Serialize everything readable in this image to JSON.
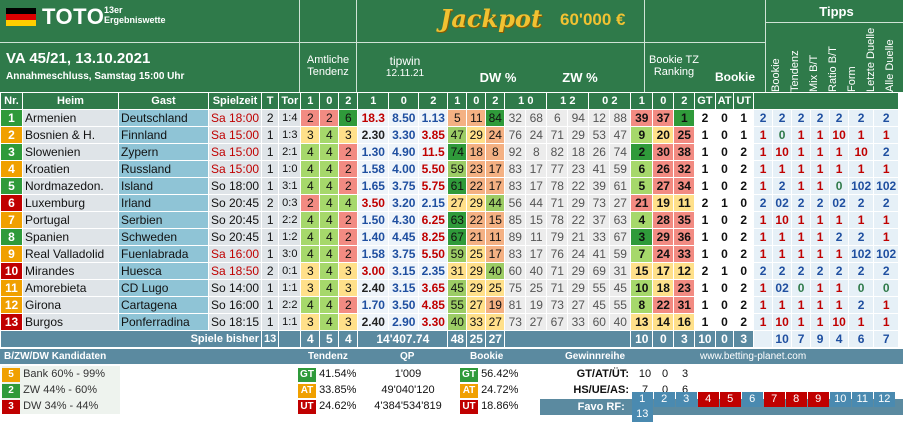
{
  "header": {
    "title": "TOTO",
    "subtitle_line1": "13er",
    "subtitle_line2": "Ergebniswette",
    "date": "VA 45/21, 13.10.2021",
    "deadline": "Annahmeschluss, Samstag 15:00 Uhr",
    "jackpot_label": "Jackpot",
    "jackpot_amount": "60'000 €",
    "amtliche1": "Amtliche",
    "amtliche2": "Tendenz",
    "tipwin": "tipwin",
    "tipwin_date": "12.11.21",
    "dw": "DW %",
    "zw": "ZW %",
    "bookie_tz1": "Bookie TZ",
    "bookie_tz2": "Ranking",
    "bookie": "Bookie",
    "tipps": "Tipps",
    "tipps_cols": [
      "Bookie",
      "Tendenz",
      "Mix B/T",
      "Ratio B/T",
      "Form",
      "Letzte Duelle",
      "Alle Duelle"
    ]
  },
  "columns": {
    "nr": "Nr.",
    "heim": "Heim",
    "gast": "Gast",
    "spielzeit": "Spielzeit",
    "t": "T",
    "tor": "Tor",
    "one": "1",
    "zero": "0",
    "two": "2",
    "z10": "1 0",
    "z12": "1 2",
    "z02": "0 2",
    "gt": "GT",
    "at": "AT",
    "ut": "UT"
  },
  "colors": {
    "green": "#2f7a4a",
    "red": "#c00000",
    "orange": "#f0a000",
    "blue": "#1f4fa0"
  },
  "rows": [
    {
      "nr": "1",
      "heim": "Armenien",
      "gast": "Deutschland",
      "zeit": "Sa 18:00",
      "t": "2",
      "tor": "1:4",
      "a1": "2",
      "a0": "2",
      "a2": "6",
      "q1": "18.3",
      "q0": "8.50",
      "q2": "1.13",
      "d1": "5",
      "d0": "11",
      "d2": "84",
      "z10": "32",
      "z10b": "68",
      "z12": "6",
      "z12b": "94",
      "z02": "12",
      "z02b": "88",
      "b1": "39",
      "b0": "37",
      "b2": "1",
      "gt": "2",
      "at": "0",
      "ut": "1",
      "tb": "2",
      "tt": "2",
      "tm": "2",
      "tr": "2",
      "tf": "2",
      "tl": "2",
      "ta": "2"
    },
    {
      "nr": "2",
      "heim": "Bosnien & H.",
      "gast": "Finnland",
      "zeit": "Sa 15:00",
      "t": "1",
      "tor": "1:3",
      "a1": "3",
      "a0": "4",
      "a2": "3",
      "q1": "2.30",
      "q0": "3.30",
      "q2": "3.85",
      "d1": "47",
      "d0": "29",
      "d2": "24",
      "z10": "76",
      "z10b": "24",
      "z12": "71",
      "z12b": "29",
      "z02": "53",
      "z02b": "47",
      "b1": "9",
      "b0": "20",
      "b2": "25",
      "gt": "1",
      "at": "0",
      "ut": "1",
      "tb": "1",
      "tt": "0",
      "tm": "1",
      "tr": "1",
      "tf": "10",
      "tl": "1",
      "ta": "1"
    },
    {
      "nr": "3",
      "heim": "Slowenien",
      "gast": "Zypern",
      "zeit": "Sa 15:00",
      "t": "1",
      "tor": "2:1",
      "a1": "4",
      "a0": "4",
      "a2": "2",
      "q1": "1.30",
      "q0": "4.90",
      "q2": "11.5",
      "d1": "74",
      "d0": "18",
      "d2": "8",
      "z10": "92",
      "z10b": "8",
      "z12": "82",
      "z12b": "18",
      "z02": "26",
      "z02b": "74",
      "b1": "2",
      "b0": "30",
      "b2": "38",
      "gt": "1",
      "at": "0",
      "ut": "2",
      "tb": "1",
      "tt": "10",
      "tm": "1",
      "tr": "1",
      "tf": "1",
      "tl": "10",
      "ta": "2"
    },
    {
      "nr": "4",
      "heim": "Kroatien",
      "gast": "Russland",
      "zeit": "Sa 15:00",
      "t": "1",
      "tor": "1:0",
      "a1": "4",
      "a0": "4",
      "a2": "2",
      "q1": "1.58",
      "q0": "4.00",
      "q2": "5.50",
      "d1": "59",
      "d0": "23",
      "d2": "17",
      "z10": "83",
      "z10b": "17",
      "z12": "77",
      "z12b": "23",
      "z02": "41",
      "z02b": "59",
      "b1": "6",
      "b0": "26",
      "b2": "32",
      "gt": "1",
      "at": "0",
      "ut": "2",
      "tb": "1",
      "tt": "1",
      "tm": "1",
      "tr": "1",
      "tf": "1",
      "tl": "1",
      "ta": "1"
    },
    {
      "nr": "5",
      "heim": "Nordmazedon.",
      "gast": "Island",
      "zeit": "So 18:00",
      "t": "1",
      "tor": "3:1",
      "a1": "4",
      "a0": "4",
      "a2": "2",
      "q1": "1.65",
      "q0": "3.75",
      "q2": "5.75",
      "d1": "61",
      "d0": "22",
      "d2": "17",
      "z10": "83",
      "z10b": "17",
      "z12": "78",
      "z12b": "22",
      "z02": "39",
      "z02b": "61",
      "b1": "5",
      "b0": "27",
      "b2": "34",
      "gt": "1",
      "at": "0",
      "ut": "2",
      "tb": "1",
      "tt": "2",
      "tm": "1",
      "tr": "1",
      "tf": "0",
      "tl": "102",
      "ta": "102"
    },
    {
      "nr": "6",
      "heim": "Luxemburg",
      "gast": "Irland",
      "zeit": "So 20:45",
      "t": "2",
      "tor": "0:3",
      "a1": "2",
      "a0": "4",
      "a2": "4",
      "q1": "3.50",
      "q0": "3.20",
      "q2": "2.15",
      "d1": "27",
      "d0": "29",
      "d2": "44",
      "z10": "56",
      "z10b": "44",
      "z12": "71",
      "z12b": "29",
      "z02": "73",
      "z02b": "27",
      "b1": "21",
      "b0": "19",
      "b2": "11",
      "gt": "2",
      "at": "1",
      "ut": "0",
      "tb": "2",
      "tt": "02",
      "tm": "2",
      "tr": "2",
      "tf": "02",
      "tl": "2",
      "ta": "2"
    },
    {
      "nr": "7",
      "heim": "Portugal",
      "gast": "Serbien",
      "zeit": "So 20:45",
      "t": "1",
      "tor": "2:2",
      "a1": "4",
      "a0": "4",
      "a2": "2",
      "q1": "1.50",
      "q0": "4.30",
      "q2": "6.25",
      "d1": "63",
      "d0": "22",
      "d2": "15",
      "z10": "85",
      "z10b": "15",
      "z12": "78",
      "z12b": "22",
      "z02": "37",
      "z02b": "63",
      "b1": "4",
      "b0": "28",
      "b2": "35",
      "gt": "1",
      "at": "0",
      "ut": "2",
      "tb": "1",
      "tt": "10",
      "tm": "1",
      "tr": "1",
      "tf": "1",
      "tl": "1",
      "ta": "1"
    },
    {
      "nr": "8",
      "heim": "Spanien",
      "gast": "Schweden",
      "zeit": "So 20:45",
      "t": "1",
      "tor": "1:2",
      "a1": "4",
      "a0": "4",
      "a2": "2",
      "q1": "1.40",
      "q0": "4.45",
      "q2": "8.25",
      "d1": "67",
      "d0": "21",
      "d2": "11",
      "z10": "89",
      "z10b": "11",
      "z12": "79",
      "z12b": "21",
      "z02": "33",
      "z02b": "67",
      "b1": "3",
      "b0": "29",
      "b2": "36",
      "gt": "1",
      "at": "0",
      "ut": "2",
      "tb": "1",
      "tt": "1",
      "tm": "1",
      "tr": "1",
      "tf": "2",
      "tl": "2",
      "ta": "1"
    },
    {
      "nr": "9",
      "heim": "Real Valladolid",
      "gast": "Fuenlabrada",
      "zeit": "Sa 16:00",
      "t": "1",
      "tor": "3:0",
      "a1": "4",
      "a0": "4",
      "a2": "2",
      "q1": "1.58",
      "q0": "3.75",
      "q2": "5.50",
      "d1": "59",
      "d0": "25",
      "d2": "17",
      "z10": "83",
      "z10b": "17",
      "z12": "76",
      "z12b": "24",
      "z02": "41",
      "z02b": "59",
      "b1": "7",
      "b0": "24",
      "b2": "33",
      "gt": "1",
      "at": "0",
      "ut": "2",
      "tb": "1",
      "tt": "1",
      "tm": "1",
      "tr": "1",
      "tf": "1",
      "tl": "102",
      "ta": "102"
    },
    {
      "nr": "10",
      "heim": "Mirandes",
      "gast": "Huesca",
      "zeit": "Sa 18:50",
      "t": "2",
      "tor": "0:1",
      "a1": "3",
      "a0": "4",
      "a2": "3",
      "q1": "3.00",
      "q0": "3.15",
      "q2": "2.35",
      "d1": "31",
      "d0": "29",
      "d2": "40",
      "z10": "60",
      "z10b": "40",
      "z12": "71",
      "z12b": "29",
      "z02": "69",
      "z02b": "31",
      "b1": "15",
      "b0": "17",
      "b2": "12",
      "gt": "2",
      "at": "1",
      "ut": "0",
      "tb": "2",
      "tt": "2",
      "tm": "2",
      "tr": "2",
      "tf": "2",
      "tl": "2",
      "ta": "2"
    },
    {
      "nr": "11",
      "heim": "Amorebieta",
      "gast": "CD Lugo",
      "zeit": "So 14:00",
      "t": "1",
      "tor": "1:1",
      "a1": "3",
      "a0": "4",
      "a2": "3",
      "q1": "2.40",
      "q0": "3.15",
      "q2": "3.65",
      "d1": "45",
      "d0": "29",
      "d2": "25",
      "z10": "75",
      "z10b": "25",
      "z12": "71",
      "z12b": "29",
      "z02": "55",
      "z02b": "45",
      "b1": "10",
      "b0": "18",
      "b2": "23",
      "gt": "1",
      "at": "0",
      "ut": "2",
      "tb": "1",
      "tt": "02",
      "tm": "0",
      "tr": "1",
      "tf": "1",
      "tl": "0",
      "ta": "0"
    },
    {
      "nr": "12",
      "heim": "Girona",
      "gast": "Cartagena",
      "zeit": "So 16:00",
      "t": "1",
      "tor": "2:2",
      "a1": "4",
      "a0": "4",
      "a2": "2",
      "q1": "1.70",
      "q0": "3.50",
      "q2": "4.85",
      "d1": "55",
      "d0": "27",
      "d2": "19",
      "z10": "81",
      "z10b": "19",
      "z12": "73",
      "z12b": "27",
      "z02": "45",
      "z02b": "55",
      "b1": "8",
      "b0": "22",
      "b2": "31",
      "gt": "1",
      "at": "0",
      "ut": "2",
      "tb": "1",
      "tt": "1",
      "tm": "1",
      "tr": "1",
      "tf": "1",
      "tl": "2",
      "ta": "1"
    },
    {
      "nr": "13",
      "heim": "Burgos",
      "gast": "Ponferradina",
      "zeit": "So 18:15",
      "t": "1",
      "tor": "1:1",
      "a1": "3",
      "a0": "4",
      "a2": "3",
      "q1": "2.40",
      "q0": "2.90",
      "q2": "3.30",
      "d1": "40",
      "d0": "33",
      "d2": "27",
      "z10": "73",
      "z10b": "27",
      "z12": "67",
      "z12b": "33",
      "z02": "60",
      "z02b": "40",
      "b1": "13",
      "b0": "14",
      "b2": "16",
      "gt": "1",
      "at": "0",
      "ut": "2",
      "tb": "1",
      "tt": "10",
      "tm": "1",
      "tr": "1",
      "tf": "10",
      "tl": "1",
      "ta": "1"
    }
  ],
  "summary": {
    "label": "Spiele bisher",
    "t": "13",
    "a1": "4",
    "a0": "5",
    "a2": "4",
    "tipwin": "14'407.74",
    "d1": "48",
    "d0": "25",
    "d2": "27",
    "b1": "10",
    "b0": "0",
    "b2": "3",
    "gt": "10",
    "at": "0",
    "ut": "3",
    "site": "www.betting-planet.com",
    "tipps": [
      "10",
      "7",
      "9",
      "4",
      "6",
      "7"
    ]
  },
  "footer": {
    "kand_title": "B/ZW/DW Kandidaten",
    "bank_n": "5",
    "bank_label": "Bank",
    "bank_range": "60% - 99%",
    "zw_n": "2",
    "zw_label": "ZW",
    "zw_range": "44% - 60%",
    "dw_n": "3",
    "dw_label": "DW",
    "dw_range": "34% - 44%",
    "tendenz": "Tendenz",
    "gt": "GT",
    "gt_v": "41.54%",
    "at": "AT",
    "at_v": "33.85%",
    "ut": "UT",
    "ut_v": "24.62%",
    "qp": "QP",
    "qp1": "1'009",
    "qp2": "49'040'120",
    "qp3": "4'384'534'819",
    "bookie": "Bookie",
    "bgt_v": "56.42%",
    "bat_v": "24.72%",
    "but_v": "18.86%",
    "gewinnreihe": "Gewinnreihe",
    "gat_label": "GT/AT/ÜT:",
    "gat": [
      "10",
      "0",
      "3"
    ],
    "hs_label": "HS/UE/AS:",
    "hs": [
      "7",
      "0",
      "6"
    ],
    "favo_label": "Favo RF:",
    "favo": [
      "1",
      "2",
      "3",
      "4",
      "5",
      "6",
      "7",
      "8",
      "9",
      "10",
      "11",
      "12",
      "13"
    ]
  }
}
